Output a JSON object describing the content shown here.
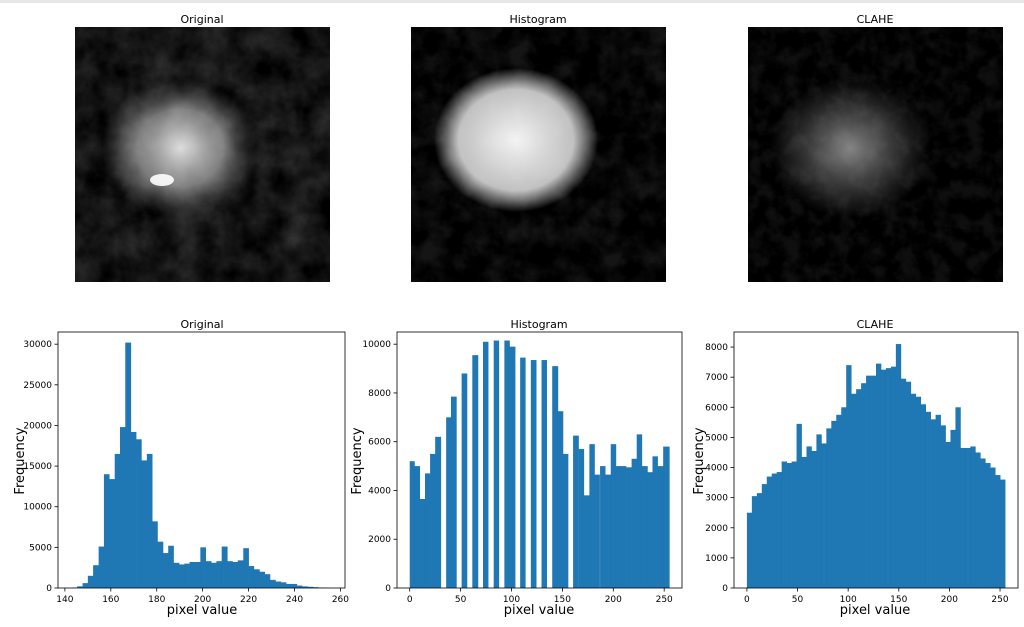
{
  "figure": {
    "panels": [
      {
        "title": "Original",
        "texture": "original"
      },
      {
        "title": "Histogram",
        "texture": "histogram"
      },
      {
        "title": "CLAHE",
        "texture": "clahe"
      }
    ]
  },
  "chart_data": [
    {
      "type": "bar",
      "title": "Original",
      "xlabel": "pixel value",
      "ylabel": "Frequency",
      "xlim": [
        137,
        262
      ],
      "ylim": [
        0,
        31500
      ],
      "xticks": [
        140,
        160,
        180,
        200,
        220,
        240,
        260
      ],
      "yticks": [
        0,
        5000,
        10000,
        15000,
        20000,
        25000,
        30000
      ],
      "bar_color": "#1f77b4",
      "bins": [
        [
          143,
          145.3,
          50
        ],
        [
          145.3,
          147.7,
          200
        ],
        [
          147.7,
          150,
          600
        ],
        [
          150,
          152.3,
          1500
        ],
        [
          152.3,
          154.7,
          2800
        ],
        [
          154.7,
          157,
          5100
        ],
        [
          157,
          159.3,
          14000
        ],
        [
          159.3,
          161.7,
          13400
        ],
        [
          161.7,
          164,
          16500
        ],
        [
          164,
          166.3,
          19800
        ],
        [
          166.3,
          168.7,
          30200
        ],
        [
          168.7,
          171,
          19200
        ],
        [
          171,
          173.3,
          18300
        ],
        [
          173.3,
          175.7,
          15700
        ],
        [
          175.7,
          178,
          16500
        ],
        [
          178,
          180.3,
          8200
        ],
        [
          180.3,
          182.7,
          5700
        ],
        [
          182.7,
          185,
          4300
        ],
        [
          185,
          187.3,
          5200
        ],
        [
          187.3,
          189.7,
          3100
        ],
        [
          189.7,
          192,
          2900
        ],
        [
          192,
          194.3,
          3000
        ],
        [
          194.3,
          196.7,
          3200
        ],
        [
          196.7,
          199,
          3200
        ],
        [
          199,
          201.3,
          5000
        ],
        [
          201.3,
          203.7,
          3300
        ],
        [
          203.7,
          206,
          3100
        ],
        [
          206,
          208.3,
          3300
        ],
        [
          208.3,
          210.7,
          5100
        ],
        [
          210.7,
          213,
          3300
        ],
        [
          213,
          215.3,
          3200
        ],
        [
          215.3,
          217.7,
          3400
        ],
        [
          217.7,
          220,
          4900
        ],
        [
          220,
          222.3,
          2700
        ],
        [
          222.3,
          224.7,
          2300
        ],
        [
          224.7,
          227,
          2000
        ],
        [
          227,
          229.3,
          1700
        ],
        [
          229.3,
          231.7,
          1000
        ],
        [
          231.7,
          234,
          800
        ],
        [
          234,
          236.3,
          700
        ],
        [
          236.3,
          238.7,
          500
        ],
        [
          238.7,
          241,
          500
        ],
        [
          241,
          243.3,
          300
        ],
        [
          243.3,
          245.7,
          200
        ],
        [
          245.7,
          248,
          150
        ],
        [
          248,
          250.3,
          100
        ],
        [
          250.3,
          252.7,
          50
        ],
        [
          252.7,
          255,
          30
        ]
      ]
    },
    {
      "type": "bar",
      "title": "Histogram",
      "xlabel": "pixel value",
      "ylabel": "Frequency",
      "xlim": [
        -12.5,
        267.5
      ],
      "ylim": [
        0,
        10500
      ],
      "xticks": [
        0,
        50,
        100,
        150,
        200,
        250
      ],
      "yticks": [
        0,
        2000,
        4000,
        6000,
        8000,
        10000
      ],
      "bar_color": "#1f77b4",
      "bins": [
        [
          0,
          4.6,
          5200
        ],
        [
          4.6,
          9.8,
          5000
        ],
        [
          9.8,
          15,
          3650
        ],
        [
          15,
          20,
          4700
        ],
        [
          20,
          25,
          5500
        ],
        [
          25,
          30.5,
          6200
        ],
        [
          35.8,
          40.5,
          7000
        ],
        [
          40.5,
          45.8,
          7850
        ],
        [
          51,
          56.2,
          8800
        ],
        [
          61.5,
          67,
          9550
        ],
        [
          72,
          77,
          10100
        ],
        [
          82.5,
          87.5,
          10150
        ],
        [
          93,
          98,
          10150
        ],
        [
          98,
          103.5,
          9900
        ],
        [
          108.5,
          113.5,
          9450
        ],
        [
          119,
          124.2,
          9350
        ],
        [
          129.5,
          134.5,
          9350
        ],
        [
          140,
          145.5,
          9100
        ],
        [
          145.5,
          150.5,
          7250
        ],
        [
          150.5,
          155.5,
          5500
        ],
        [
          160.5,
          165.8,
          6250
        ],
        [
          166,
          171,
          5700
        ],
        [
          171,
          176.5,
          3800
        ],
        [
          176.5,
          181.5,
          5900
        ],
        [
          181.5,
          186.5,
          4650
        ],
        [
          187,
          192,
          5000
        ],
        [
          192,
          197.5,
          4650
        ],
        [
          197.5,
          202.5,
          5900
        ],
        [
          202.5,
          207.5,
          5000
        ],
        [
          207.5,
          212.5,
          5000
        ],
        [
          212.5,
          218,
          4950
        ],
        [
          218,
          223,
          5300
        ],
        [
          223,
          228,
          6300
        ],
        [
          228,
          233.5,
          5000
        ],
        [
          233.5,
          238.5,
          4750
        ],
        [
          238.5,
          243.5,
          5400
        ],
        [
          243.5,
          249,
          5000
        ],
        [
          249,
          255,
          5800
        ]
      ]
    },
    {
      "type": "bar",
      "title": "CLAHE",
      "xlabel": "pixel value",
      "ylabel": "Frequency",
      "xlim": [
        -12.75,
        267.75
      ],
      "ylim": [
        0,
        8500
      ],
      "xticks": [
        0,
        50,
        100,
        150,
        200,
        250
      ],
      "yticks": [
        0,
        1000,
        2000,
        3000,
        4000,
        5000,
        6000,
        7000,
        8000
      ],
      "bar_color": "#1f77b4",
      "bin_edges": [
        0,
        255
      ],
      "values": [
        2500,
        3050,
        3150,
        3450,
        3700,
        3800,
        3850,
        4200,
        4150,
        4200,
        5450,
        4350,
        4700,
        4550,
        5100,
        4800,
        5300,
        5550,
        5750,
        6000,
        7400,
        6450,
        6600,
        6800,
        7050,
        7050,
        7450,
        7250,
        7300,
        7350,
        8100,
        6950,
        6850,
        6450,
        6350,
        6100,
        5850,
        5600,
        5750,
        5400,
        4850,
        5250,
        6000,
        4650,
        4650,
        4700,
        4500,
        4300,
        4150,
        4000,
        3750,
        3600
      ]
    }
  ]
}
